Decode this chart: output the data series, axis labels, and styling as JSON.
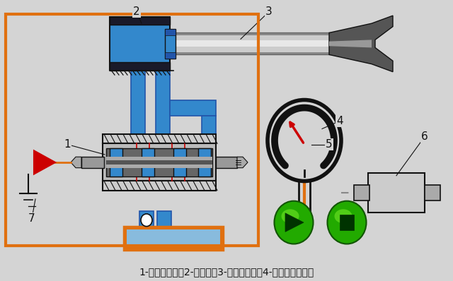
{
  "bg_color": "#d4d4d4",
  "caption": "1-电液伺服阀；2-液压缸；3-机械手手臂；4-齿轮齿条机构；",
  "caption_fontsize": 10,
  "label_fontsize": 11,
  "orange_color": "#e07010",
  "blue_color": "#3388cc",
  "blue_dark": "#2255aa",
  "blue_light": "#88bbdd"
}
